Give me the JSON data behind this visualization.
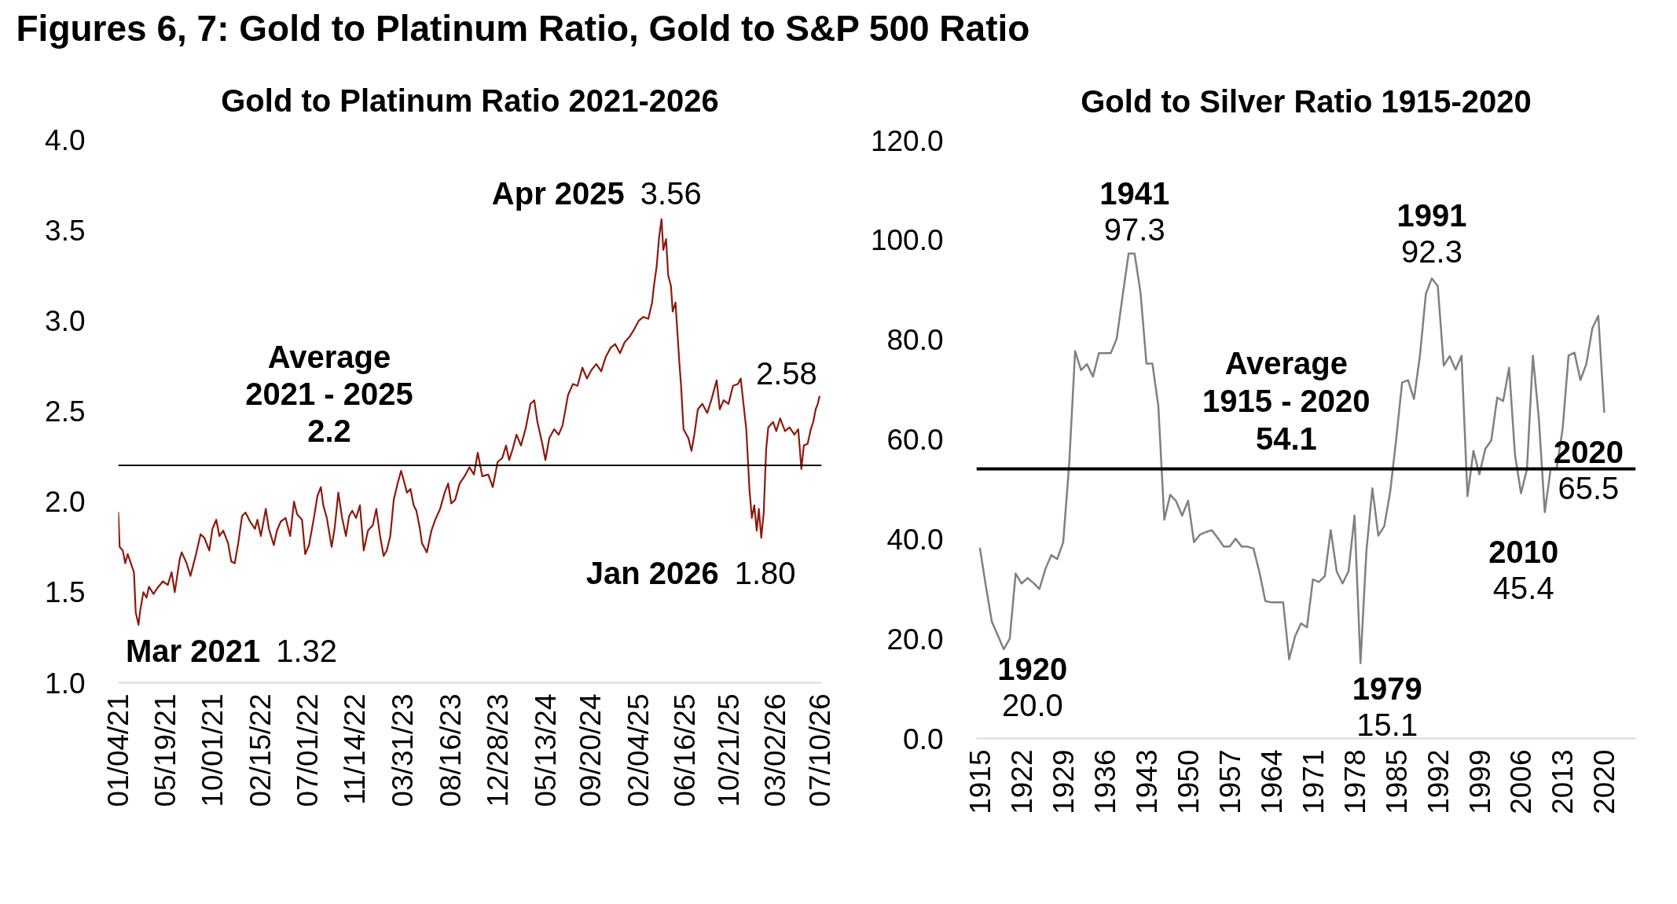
{
  "chart_data": [
    {
      "type": "other",
      "title": "Figures 6, 7: Gold to Platinum Ratio, Gold to S&P 500 Ratio"
    },
    {
      "type": "line",
      "title": "Gold to Platinum Ratio 2021-2026",
      "x": [
        "2021-01-04",
        "2021-01-08",
        "2021-01-17",
        "2021-01-24",
        "2021-01-31",
        "2021-02-09",
        "2021-02-18",
        "2021-02-23",
        "2021-03-03",
        "2021-03-08",
        "2021-03-17",
        "2021-03-26",
        "2021-04-02",
        "2021-04-15",
        "2021-04-29",
        "2021-05-12",
        "2021-05-26",
        "2021-06-06",
        "2021-06-15",
        "2021-06-29",
        "2021-07-05",
        "2021-07-19",
        "2021-07-30",
        "2021-08-15",
        "2021-08-28",
        "2021-09-08",
        "2021-09-22",
        "2021-10-01",
        "2021-10-12",
        "2021-10-21",
        "2021-11-01",
        "2021-11-15",
        "2021-11-24",
        "2021-12-04",
        "2021-12-14",
        "2021-12-25",
        "2022-01-04",
        "2022-01-17",
        "2022-01-31",
        "2022-02-07",
        "2022-02-17",
        "2022-03-03",
        "2022-03-12",
        "2022-03-26",
        "2022-04-04",
        "2022-04-15",
        "2022-04-29",
        "2022-05-12",
        "2022-05-23",
        "2022-06-01",
        "2022-06-15",
        "2022-06-24",
        "2022-07-05",
        "2022-07-19",
        "2022-07-29",
        "2022-08-08",
        "2022-08-15",
        "2022-08-25",
        "2022-09-08",
        "2022-09-17",
        "2022-09-27",
        "2022-10-08",
        "2022-10-19",
        "2022-10-28",
        "2022-11-06",
        "2022-11-17",
        "2022-11-28",
        "2022-12-09",
        "2022-12-21",
        "2023-01-04",
        "2023-01-14",
        "2023-01-24",
        "2023-02-04",
        "2023-02-13",
        "2023-02-23",
        "2023-03-05",
        "2023-03-16",
        "2023-03-26",
        "2023-04-01",
        "2023-04-12",
        "2023-04-22",
        "2023-05-01",
        "2023-05-09",
        "2023-05-19",
        "2023-05-25",
        "2023-06-08",
        "2023-06-21",
        "2023-07-02",
        "2023-07-16",
        "2023-07-29",
        "2023-08-08",
        "2023-08-17",
        "2023-08-28",
        "2023-09-10",
        "2023-09-24",
        "2023-10-08",
        "2023-10-21",
        "2023-11-01",
        "2023-11-14",
        "2023-12-01",
        "2023-12-14",
        "2023-12-28",
        "2024-01-10",
        "2024-01-21",
        "2024-01-30",
        "2024-02-09",
        "2024-02-20",
        "2024-03-04",
        "2024-03-18",
        "2024-03-31",
        "2024-04-11",
        "2024-04-20",
        "2024-05-04",
        "2024-05-13",
        "2024-05-24",
        "2024-06-07",
        "2024-06-20",
        "2024-07-01",
        "2024-07-17",
        "2024-07-31",
        "2024-08-13",
        "2024-08-27",
        "2024-09-09",
        "2024-09-23",
        "2024-10-06",
        "2024-10-20",
        "2024-11-02",
        "2024-11-16",
        "2024-11-29",
        "2024-12-13",
        "2024-12-26",
        "2025-01-09",
        "2025-01-22",
        "2025-02-05",
        "2025-02-18",
        "2025-03-04",
        "2025-03-15",
        "2025-03-20",
        "2025-03-28",
        "2025-04-04",
        "2025-04-11",
        "2025-04-16",
        "2025-04-24",
        "2025-04-30",
        "2025-05-08",
        "2025-05-13",
        "2025-05-21",
        "2025-05-27",
        "2025-06-01",
        "2025-06-06",
        "2025-06-13",
        "2025-06-27",
        "2025-07-06",
        "2025-07-14",
        "2025-07-24",
        "2025-08-06",
        "2025-08-20",
        "2025-09-02",
        "2025-09-16",
        "2025-09-25",
        "2025-10-06",
        "2025-10-20",
        "2025-11-02",
        "2025-11-16",
        "2025-11-24",
        "2025-12-02",
        "2025-12-10",
        "2025-12-15",
        "2025-12-19",
        "2025-12-26",
        "2026-01-02",
        "2026-01-09",
        "2026-01-15",
        "2026-01-22",
        "2026-01-29",
        "2026-02-05",
        "2026-02-11",
        "2026-02-25",
        "2026-03-06",
        "2026-03-17",
        "2026-03-31",
        "2026-04-13",
        "2026-04-27",
        "2026-05-08",
        "2026-05-17",
        "2026-05-24",
        "2026-06-04",
        "2026-06-13",
        "2026-06-20",
        "2026-06-27",
        "2026-07-03",
        "2026-07-08"
      ],
      "series": [
        {
          "color": "#8b1a0e",
          "values": [
            1.94,
            1.75,
            1.73,
            1.66,
            1.71,
            1.66,
            1.61,
            1.39,
            1.32,
            1.4,
            1.5,
            1.47,
            1.53,
            1.49,
            1.53,
            1.56,
            1.54,
            1.61,
            1.5,
            1.68,
            1.72,
            1.66,
            1.59,
            1.71,
            1.82,
            1.8,
            1.73,
            1.85,
            1.9,
            1.81,
            1.84,
            1.77,
            1.67,
            1.66,
            1.77,
            1.92,
            1.94,
            1.89,
            1.85,
            1.9,
            1.81,
            1.96,
            1.85,
            1.76,
            1.84,
            1.89,
            1.91,
            1.81,
            2.0,
            1.93,
            1.9,
            1.71,
            1.76,
            1.91,
            2.03,
            2.08,
            1.98,
            1.91,
            1.75,
            1.86,
            2.05,
            1.91,
            1.81,
            1.92,
            1.95,
            1.91,
            1.98,
            1.73,
            1.84,
            1.87,
            1.96,
            1.82,
            1.7,
            1.73,
            1.81,
            2.01,
            2.1,
            2.17,
            2.13,
            2.05,
            2.07,
            1.98,
            1.95,
            1.85,
            1.77,
            1.72,
            1.84,
            1.9,
            1.96,
            2.05,
            2.1,
            1.99,
            2.01,
            2.1,
            2.14,
            2.19,
            2.15,
            2.27,
            2.14,
            2.15,
            2.08,
            2.22,
            2.24,
            2.31,
            2.23,
            2.29,
            2.37,
            2.31,
            2.41,
            2.54,
            2.56,
            2.44,
            2.32,
            2.23,
            2.35,
            2.4,
            2.37,
            2.42,
            2.59,
            2.65,
            2.64,
            2.74,
            2.68,
            2.73,
            2.76,
            2.72,
            2.8,
            2.85,
            2.87,
            2.82,
            2.88,
            2.91,
            2.95,
            3.0,
            3.02,
            3.01,
            3.1,
            3.19,
            3.3,
            3.46,
            3.56,
            3.39,
            3.45,
            3.25,
            3.19,
            3.05,
            3.1,
            2.92,
            2.77,
            2.64,
            2.4,
            2.35,
            2.28,
            2.37,
            2.51,
            2.54,
            2.49,
            2.57,
            2.67,
            2.51,
            2.56,
            2.54,
            2.64,
            2.65,
            2.68,
            2.54,
            2.4,
            2.22,
            2.07,
            1.91,
            1.98,
            1.84,
            1.96,
            1.8,
            1.94,
            2.29,
            2.41,
            2.44,
            2.39,
            2.46,
            2.39,
            2.41,
            2.37,
            2.4,
            2.18,
            2.31,
            2.32,
            2.4,
            2.44,
            2.51,
            2.54,
            2.58
          ]
        }
      ],
      "xlim": [
        "2021-01-04",
        "2026-07-14"
      ],
      "ylim": [
        1.0,
        4.0
      ],
      "xticks": [
        {
          "value": "2021-01-04",
          "label": "01/04/21"
        },
        {
          "value": "2021-05-19",
          "label": "05/19/21"
        },
        {
          "value": "2021-10-01",
          "label": "10/01/21"
        },
        {
          "value": "2022-02-15",
          "label": "02/15/22"
        },
        {
          "value": "2022-07-01",
          "label": "07/01/22"
        },
        {
          "value": "2022-11-14",
          "label": "11/14/22"
        },
        {
          "value": "2023-03-31",
          "label": "03/31/23"
        },
        {
          "value": "2023-08-16",
          "label": "08/16/23"
        },
        {
          "value": "2023-12-28",
          "label": "12/28/23"
        },
        {
          "value": "2024-05-13",
          "label": "05/13/24"
        },
        {
          "value": "2024-09-20",
          "label": "09/20/24"
        },
        {
          "value": "2025-02-04",
          "label": "02/04/25"
        },
        {
          "value": "2025-06-16",
          "label": "06/16/25"
        },
        {
          "value": "2025-10-21",
          "label": "10/21/25"
        },
        {
          "value": "2026-03-02",
          "label": "03/02/26"
        },
        {
          "value": "2026-07-10",
          "label": "07/10/26"
        }
      ],
      "yticks": [
        {
          "value": 1.0,
          "label": "1.0"
        },
        {
          "value": 1.5,
          "label": "1.5"
        },
        {
          "value": 2.0,
          "label": "2.0"
        },
        {
          "value": 2.5,
          "label": "2.5"
        },
        {
          "value": 3.0,
          "label": "3.0"
        },
        {
          "value": 3.5,
          "label": "3.5"
        },
        {
          "value": 4.0,
          "label": "4.0"
        }
      ],
      "grid": false,
      "ref_lines": [
        {
          "axis": "y",
          "value": 2.2,
          "label": "Average\n2021 - 2025\n2.2",
          "color": "#000000"
        }
      ],
      "annotations": [
        {
          "text": "Mar 2021 1.32",
          "x": "2021-03-03",
          "y": 1.32
        },
        {
          "text": "Apr 2025 3.56",
          "x": "2025-04-11",
          "y": 3.56
        },
        {
          "text": "Jan 2026 1.80",
          "x": "2026-01-22",
          "y": 1.8
        },
        {
          "text": "2.58",
          "x": "2026-07-08",
          "y": 2.58
        }
      ]
    },
    {
      "type": "line",
      "title": "Gold to Silver Ratio 1915-2020",
      "x": [
        1915,
        1916,
        1917,
        1918,
        1919,
        1920,
        1921,
        1922,
        1923,
        1924,
        1925,
        1926,
        1927,
        1928,
        1929,
        1930,
        1931,
        1932,
        1933,
        1934,
        1935,
        1936,
        1937,
        1938,
        1939,
        1940,
        1941,
        1942,
        1943,
        1944,
        1945,
        1946,
        1947,
        1948,
        1949,
        1950,
        1951,
        1952,
        1953,
        1954,
        1955,
        1956,
        1957,
        1958,
        1959,
        1960,
        1961,
        1962,
        1963,
        1964,
        1965,
        1966,
        1967,
        1968,
        1969,
        1970,
        1971,
        1972,
        1973,
        1974,
        1975,
        1976,
        1977,
        1978,
        1979,
        1980,
        1981,
        1982,
        1983,
        1984,
        1985,
        1986,
        1987,
        1988,
        1989,
        1990,
        1991,
        1992,
        1993,
        1994,
        1995,
        1996,
        1997,
        1998,
        1999,
        2000,
        2001,
        2002,
        2003,
        2004,
        2005,
        2006,
        2007,
        2008,
        2009,
        2010,
        2011,
        2012,
        2013,
        2014,
        2015,
        2016,
        2017,
        2018,
        2019,
        2020
      ],
      "series": [
        {
          "color": "#808080",
          "values": [
            38.1,
            30.5,
            23.4,
            20.7,
            17.9,
            20.0,
            33.1,
            31.1,
            32.2,
            31.2,
            30.0,
            34.0,
            36.8,
            36.0,
            39.4,
            55.0,
            77.7,
            73.9,
            75.1,
            72.6,
            77.3,
            77.3,
            77.3,
            80.2,
            88.9,
            97.3,
            97.3,
            89.5,
            75.2,
            75.2,
            66.7,
            43.9,
            48.9,
            47.6,
            44.7,
            47.7,
            39.4,
            40.9,
            41.4,
            41.8,
            40.2,
            38.5,
            38.5,
            40.1,
            38.5,
            38.5,
            38.1,
            33.4,
            27.6,
            27.3,
            27.3,
            27.3,
            15.9,
            20.5,
            23.1,
            22.3,
            31.9,
            31.4,
            32.6,
            41.8,
            33.5,
            31.1,
            33.6,
            44.7,
            15.1,
            37.6,
            50.2,
            40.7,
            42.6,
            49.5,
            60.0,
            71.4,
            71.9,
            68.1,
            76.8,
            89.2,
            92.3,
            90.8,
            74.8,
            76.7,
            74.0,
            76.8,
            48.6,
            57.7,
            53.0,
            58.1,
            59.8,
            68.4,
            67.7,
            74.4,
            56.8,
            49.2,
            54.0,
            76.8,
            64.2,
            45.4,
            54.2,
            54.2,
            62.1,
            76.8,
            77.4,
            71.9,
            75.2,
            82.3,
            84.8,
            65.5
          ]
        }
      ],
      "xlim": [
        1914.4,
        2025.3
      ],
      "ylim": [
        0,
        120
      ],
      "xticks": [
        1915,
        1922,
        1929,
        1936,
        1943,
        1950,
        1957,
        1964,
        1971,
        1978,
        1985,
        1992,
        1999,
        2006,
        2013,
        2020
      ],
      "yticks": [
        {
          "value": 0,
          "label": "0.0"
        },
        {
          "value": 20,
          "label": "20.0"
        },
        {
          "value": 40,
          "label": "40.0"
        },
        {
          "value": 60,
          "label": "60.0"
        },
        {
          "value": 80,
          "label": "80.0"
        },
        {
          "value": 100,
          "label": "100.0"
        },
        {
          "value": 120,
          "label": "120.0"
        }
      ],
      "grid": false,
      "ref_lines": [
        {
          "axis": "y",
          "value": 54.1,
          "label": "Average\n1915 - 2020\n54.1",
          "color": "#000000"
        }
      ],
      "annotations": [
        {
          "text": "1920\n20.0",
          "x": 1920,
          "y": 20.0
        },
        {
          "text": "1941\n97.3",
          "x": 1941,
          "y": 97.3
        },
        {
          "text": "1979\n15.1",
          "x": 1979,
          "y": 15.1
        },
        {
          "text": "1991\n92.3",
          "x": 1991,
          "y": 92.3
        },
        {
          "text": "2010\n45.4",
          "x": 2010,
          "y": 45.4
        },
        {
          "text": "2020\n65.5",
          "x": 2020,
          "y": 65.5
        }
      ]
    }
  ]
}
